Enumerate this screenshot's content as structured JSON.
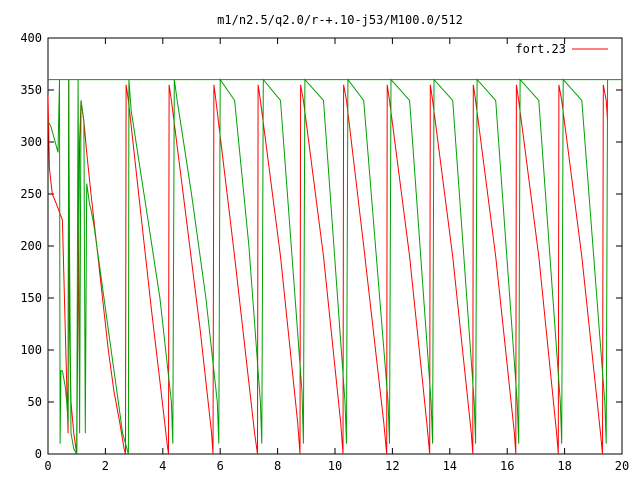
{
  "chart_data": {
    "type": "line",
    "title": "m1/n2.5/q2.0/r-+.10-j53/M100.0/512",
    "xlabel": "",
    "ylabel": "",
    "xlim": [
      0,
      20
    ],
    "ylim": [
      0,
      400
    ],
    "x_ticks": [
      "0",
      "2",
      "4",
      "6",
      "8",
      "10",
      "12",
      "14",
      "16",
      "18",
      "20"
    ],
    "y_ticks": [
      "0",
      "50",
      "100",
      "150",
      "200",
      "250",
      "300",
      "350",
      "400"
    ],
    "grid": false,
    "legend_position": "top-right",
    "colors": {
      "series1": "#ff0000",
      "series2": "#00a000",
      "frame": "#000000"
    },
    "series": [
      {
        "name": "fort.23",
        "x": [
          0.0,
          0.05,
          0.15,
          0.3,
          0.5,
          0.62,
          0.7,
          0.72,
          0.75,
          0.8,
          0.9,
          1.0,
          1.05,
          1.1,
          1.15,
          1.2,
          1.25,
          1.35,
          1.5,
          1.7,
          1.9,
          2.1,
          2.3,
          2.5,
          2.65,
          2.7,
          2.72,
          2.8,
          3.2,
          3.6,
          3.9,
          4.15,
          4.2,
          4.22,
          4.3,
          4.8,
          5.3,
          5.7,
          5.75,
          5.78,
          5.85,
          6.5,
          7.2,
          7.3,
          7.32,
          7.4,
          8.1,
          8.7,
          8.78,
          8.8,
          8.9,
          9.6,
          10.2,
          10.28,
          10.3,
          10.4,
          11.0,
          11.7,
          11.8,
          11.82,
          11.9,
          12.6,
          13.2,
          13.3,
          13.32,
          13.4,
          14.1,
          14.75,
          14.8,
          14.82,
          14.9,
          15.6,
          16.25,
          16.3,
          16.32,
          16.4,
          17.1,
          17.72,
          17.78,
          17.8,
          17.9,
          18.6,
          19.25,
          19.32,
          19.35,
          19.45,
          19.5
        ],
        "y": [
          345,
          275,
          250,
          240,
          225,
          100,
          20,
          360,
          120,
          50,
          20,
          0,
          150,
          300,
          340,
          330,
          320,
          290,
          250,
          200,
          150,
          100,
          60,
          30,
          5,
          0,
          355,
          340,
          240,
          140,
          70,
          10,
          0,
          355,
          340,
          230,
          120,
          20,
          0,
          355,
          340,
          190,
          20,
          0,
          355,
          340,
          190,
          30,
          0,
          355,
          340,
          190,
          30,
          0,
          355,
          340,
          200,
          30,
          0,
          355,
          340,
          190,
          30,
          0,
          355,
          340,
          190,
          20,
          0,
          355,
          340,
          190,
          20,
          0,
          355,
          340,
          190,
          20,
          0,
          355,
          340,
          190,
          20,
          0,
          355,
          340,
          320
        ]
      },
      {
        "x": [
          0.0,
          0.1,
          0.2,
          0.3,
          0.35,
          0.4,
          0.42,
          0.45,
          0.5,
          0.6,
          0.65,
          0.7,
          0.72,
          0.75,
          0.8,
          0.9,
          1.0,
          1.05,
          1.1,
          1.15,
          1.2,
          1.25,
          1.3,
          1.35,
          1.4,
          1.45,
          1.5,
          1.6,
          1.8,
          2.0,
          2.2,
          2.4,
          2.6,
          2.8,
          2.82,
          2.9,
          3.4,
          3.9,
          4.3,
          4.35,
          4.4,
          4.5,
          5.0,
          5.5,
          5.9,
          5.95,
          6.0,
          6.5,
          7.0,
          7.4,
          7.45,
          7.5,
          8.1,
          8.85,
          8.9,
          8.95,
          9.6,
          10.35,
          10.4,
          10.45,
          11.0,
          11.85,
          11.9,
          11.95,
          12.6,
          13.35,
          13.4,
          13.45,
          14.1,
          14.85,
          14.9,
          14.95,
          15.6,
          16.35,
          16.4,
          16.45,
          17.1,
          17.85,
          17.9,
          17.95,
          18.6,
          19.4,
          19.45,
          19.5
        ],
        "y": [
          320,
          315,
          305,
          295,
          290,
          360,
          10,
          80,
          80,
          65,
          50,
          30,
          360,
          200,
          20,
          5,
          0,
          360,
          20,
          340,
          330,
          320,
          20,
          260,
          250,
          240,
          235,
          220,
          180,
          140,
          100,
          60,
          20,
          0,
          360,
          330,
          240,
          150,
          50,
          10,
          360,
          340,
          250,
          150,
          50,
          10,
          360,
          340,
          200,
          50,
          10,
          360,
          340,
          60,
          10,
          360,
          340,
          50,
          10,
          360,
          340,
          50,
          10,
          360,
          340,
          50,
          10,
          360,
          340,
          50,
          10,
          360,
          340,
          50,
          10,
          360,
          340,
          50,
          10,
          360,
          340,
          50,
          10,
          360
        ]
      }
    ],
    "reference_lines": [
      {
        "y": 360,
        "color": "#00a000"
      }
    ]
  }
}
